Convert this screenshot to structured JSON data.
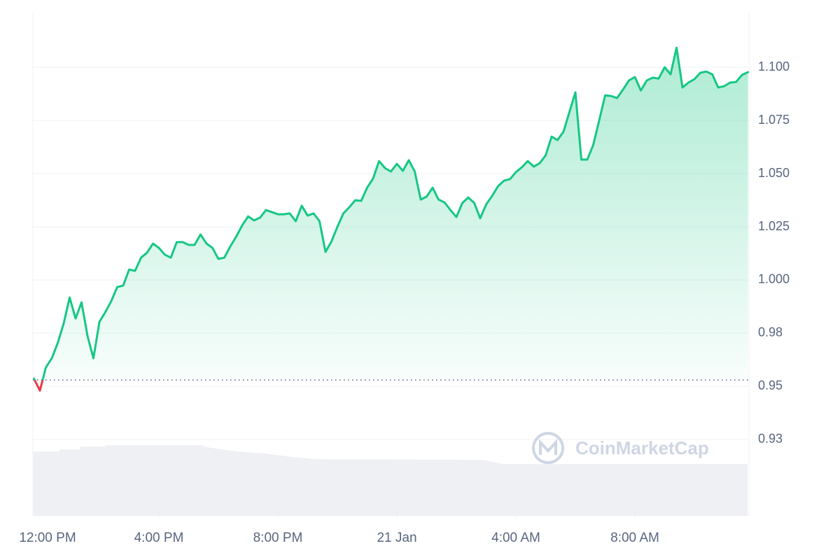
{
  "chart_data": {
    "type": "line",
    "x": [
      11.8,
      12,
      12.2,
      12.4,
      12.6,
      12.8,
      13,
      13.2,
      13.4,
      13.6,
      13.8,
      14,
      14.2,
      14.4,
      14.6,
      14.8,
      15,
      15.2,
      15.4,
      15.6,
      15.8,
      16,
      16.2,
      16.4,
      16.6,
      16.8,
      17,
      17.2,
      17.4,
      17.6,
      17.8,
      18,
      18.2,
      18.4,
      18.6,
      18.8,
      19,
      19.2,
      19.4,
      19.6,
      19.8,
      20,
      20.2,
      20.4,
      20.6,
      20.8,
      21,
      21.2,
      21.4,
      21.6,
      21.8,
      22,
      22.2,
      22.4,
      22.6,
      22.8,
      23,
      23.2,
      23.4,
      23.6,
      23.8,
      24,
      24.2,
      24.4,
      24.6,
      24.8,
      25,
      25.2,
      25.4,
      25.6,
      25.8,
      26,
      26.2,
      26.4,
      26.6,
      26.8,
      27,
      27.2,
      27.4,
      27.6,
      27.8,
      28,
      28.2,
      28.4,
      28.6,
      28.8,
      29,
      29.2,
      29.4,
      29.6,
      29.8,
      30,
      30.2,
      30.4,
      30.6,
      30.8,
      31,
      31.2,
      31.4,
      31.6,
      31.8,
      32,
      32.2,
      32.4,
      32.6,
      32.8,
      33,
      33.2,
      33.4,
      33.6,
      33.8,
      34,
      34.2,
      34.4,
      34.6,
      34.8,
      35,
      35.2,
      35.4,
      35.6,
      35.8
    ],
    "values": [
      0.9536,
      0.948,
      0.9589,
      0.9632,
      0.9704,
      0.9796,
      0.9918,
      0.9819,
      0.9895,
      0.9737,
      0.9632,
      0.9803,
      0.9849,
      0.9901,
      0.9967,
      0.9974,
      1.0049,
      1.0043,
      1.0105,
      1.0128,
      1.0171,
      1.0151,
      1.0119,
      1.0105,
      1.0178,
      1.0178,
      1.0165,
      1.0165,
      1.0214,
      1.0171,
      1.0151,
      1.0099,
      1.0105,
      1.0158,
      1.0204,
      1.0257,
      1.0299,
      1.028,
      1.0293,
      1.0329,
      1.0319,
      1.0309,
      1.0309,
      1.0313,
      1.0276,
      1.0349,
      1.0303,
      1.0313,
      1.0276,
      1.0132,
      1.0181,
      1.025,
      1.0313,
      1.0342,
      1.0375,
      1.0372,
      1.0434,
      1.0477,
      1.0559,
      1.0526,
      1.051,
      1.0546,
      1.0513,
      1.0563,
      1.051,
      1.0378,
      1.0392,
      1.0434,
      1.0378,
      1.0365,
      1.0329,
      1.0296,
      1.0362,
      1.0388,
      1.0362,
      1.029,
      1.0355,
      1.0395,
      1.0441,
      1.0467,
      1.0474,
      1.0507,
      1.053,
      1.0559,
      1.0533,
      1.0549,
      1.0586,
      1.0674,
      1.0658,
      1.0697,
      1.079,
      1.0882,
      1.0566,
      1.0566,
      1.0635,
      1.075,
      1.0868,
      1.0865,
      1.0855,
      1.0895,
      1.0938,
      1.0954,
      1.0891,
      1.0938,
      1.0951,
      1.0947,
      1.1,
      1.0967,
      1.1092,
      1.0905,
      1.0928,
      1.0944,
      1.0974,
      1.098,
      1.0967,
      1.0905,
      1.0911,
      1.0928,
      1.0931,
      1.0964,
      1.0977
    ],
    "color": "#16c784",
    "down_color": "#ea3943",
    "baseline": 0.953,
    "xlim": [
      11.8,
      35.8
    ],
    "xticks": [
      {
        "value": 12,
        "label": "12:00 PM"
      },
      {
        "value": 16,
        "label": "4:00 PM"
      },
      {
        "value": 20,
        "label": "8:00 PM"
      },
      {
        "value": 24,
        "label": "21 Jan"
      },
      {
        "value": 28,
        "label": "4:00 AM"
      },
      {
        "value": 32,
        "label": "8:00 AM"
      }
    ],
    "ylim": [
      0.8891,
      1.1257
    ],
    "yticks": [
      {
        "value": 1.1,
        "label": "1.100"
      },
      1.075,
      {
        "value": 1.05,
        "label": "1.050"
      },
      1.025,
      {
        "value": 1,
        "label": "1.000"
      },
      {
        "value": 0.975,
        "label": "0.98"
      },
      0.95,
      {
        "value": 0.925,
        "label": "0.93"
      }
    ],
    "grid": true,
    "watermark": "CoinMarketCap"
  }
}
